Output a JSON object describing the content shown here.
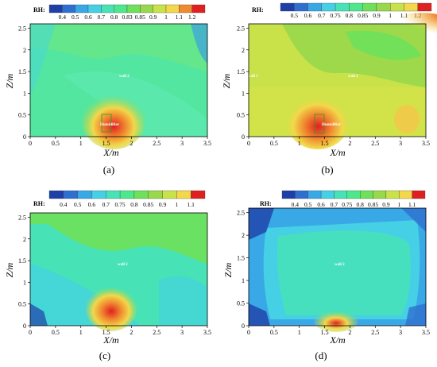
{
  "captions": [
    "(a)",
    "(b)",
    "(c)",
    "(d)"
  ],
  "chart_data": [
    {
      "type": "heatmap",
      "xlabel": "X/m",
      "ylabel": "Z/m",
      "xlim": [
        0,
        3.5
      ],
      "ylim": [
        0,
        2.6
      ],
      "x_ticks": [
        "0",
        "0.5",
        "1",
        "1.5",
        "2",
        "2.5",
        "3",
        "3.5"
      ],
      "y_ticks": [
        "0",
        "0.5",
        "1",
        "1.5",
        "2",
        "2.5"
      ],
      "colorbar": {
        "title": "RH:",
        "levels": [
          "0.4",
          "0.5",
          "0.6",
          "0.7",
          "0.8",
          "0.83",
          "0.85",
          "0.9",
          "1",
          "1.1",
          "1.2"
        ],
        "colors": [
          "#1f3fa8",
          "#2f6fd0",
          "#39a8e6",
          "#45d0e6",
          "#47e3b6",
          "#4de88c",
          "#6ee05a",
          "#98d84a",
          "#c9e24a",
          "#f2d84a",
          "#f08a30",
          "#e02020"
        ]
      },
      "annotations": [
        "wall 2",
        "Humidifier"
      ]
    },
    {
      "type": "heatmap",
      "xlabel": "X/m",
      "ylabel": "Z/m",
      "xlim": [
        0,
        3.5
      ],
      "ylim": [
        0,
        2.6
      ],
      "x_ticks": [
        "0",
        "0.5",
        "1",
        "1.5",
        "2",
        "2.5",
        "3",
        "3.5"
      ],
      "y_ticks": [
        "0",
        "0.5",
        "1",
        "1.5",
        "2",
        "2.5"
      ],
      "colorbar": {
        "title": "RH:",
        "levels": [
          "0.5",
          "0.6",
          "0.7",
          "0.75",
          "0.8",
          "0.85",
          "0.9",
          "1",
          "1.1",
          "1.2"
        ],
        "colors": [
          "#1f3fa8",
          "#2f6fd0",
          "#39a8e6",
          "#45d0e6",
          "#47e3b6",
          "#4de88c",
          "#6ee05a",
          "#98d84a",
          "#c9e24a",
          "#f2d84a",
          "#e02020"
        ]
      },
      "annotations": [
        "wall 1",
        "wall 2",
        "Humidifier"
      ]
    },
    {
      "type": "heatmap",
      "xlabel": "X/m",
      "ylabel": "Z/m",
      "xlim": [
        0,
        3.5
      ],
      "ylim": [
        0,
        2.6
      ],
      "x_ticks": [
        "0",
        "0.5",
        "1",
        "1.5",
        "2",
        "2.5",
        "3",
        "3.5"
      ],
      "y_ticks": [
        "0",
        "0.5",
        "1",
        "1.5",
        "2",
        "2.5"
      ],
      "colorbar": {
        "title": "RH:",
        "levels": [
          "0.4",
          "0.5",
          "0.6",
          "0.7",
          "0.75",
          "0.8",
          "0.85",
          "0.9",
          "1",
          "1.1"
        ],
        "colors": [
          "#1f3fa8",
          "#2f6fd0",
          "#39a8e6",
          "#45d0e6",
          "#47e3b6",
          "#4de88c",
          "#6ee05a",
          "#98d84a",
          "#c9e24a",
          "#f2d84a",
          "#e02020"
        ]
      },
      "annotations": [
        "wall 2"
      ]
    },
    {
      "type": "heatmap",
      "xlabel": "X/m",
      "ylabel": "Z/m",
      "xlim": [
        0,
        3.5
      ],
      "ylim": [
        0,
        2.6
      ],
      "x_ticks": [
        "0",
        "0.5",
        "1",
        "1.5",
        "2",
        "2.5",
        "3",
        "3.5"
      ],
      "y_ticks": [
        "0",
        "0.5",
        "1",
        "1.5",
        "2",
        "2.5"
      ],
      "colorbar": {
        "title": "RH:",
        "levels": [
          "0.4",
          "0.5",
          "0.6",
          "0.7",
          "0.75",
          "0.8",
          "0.85",
          "0.9",
          "1",
          "1.1"
        ],
        "colors": [
          "#1f3fa8",
          "#2f6fd0",
          "#39a8e6",
          "#45d0e6",
          "#47e3b6",
          "#4de88c",
          "#6ee05a",
          "#98d84a",
          "#c9e24a",
          "#f2d84a",
          "#e02020"
        ]
      },
      "annotations": [
        "wall 2"
      ]
    }
  ]
}
